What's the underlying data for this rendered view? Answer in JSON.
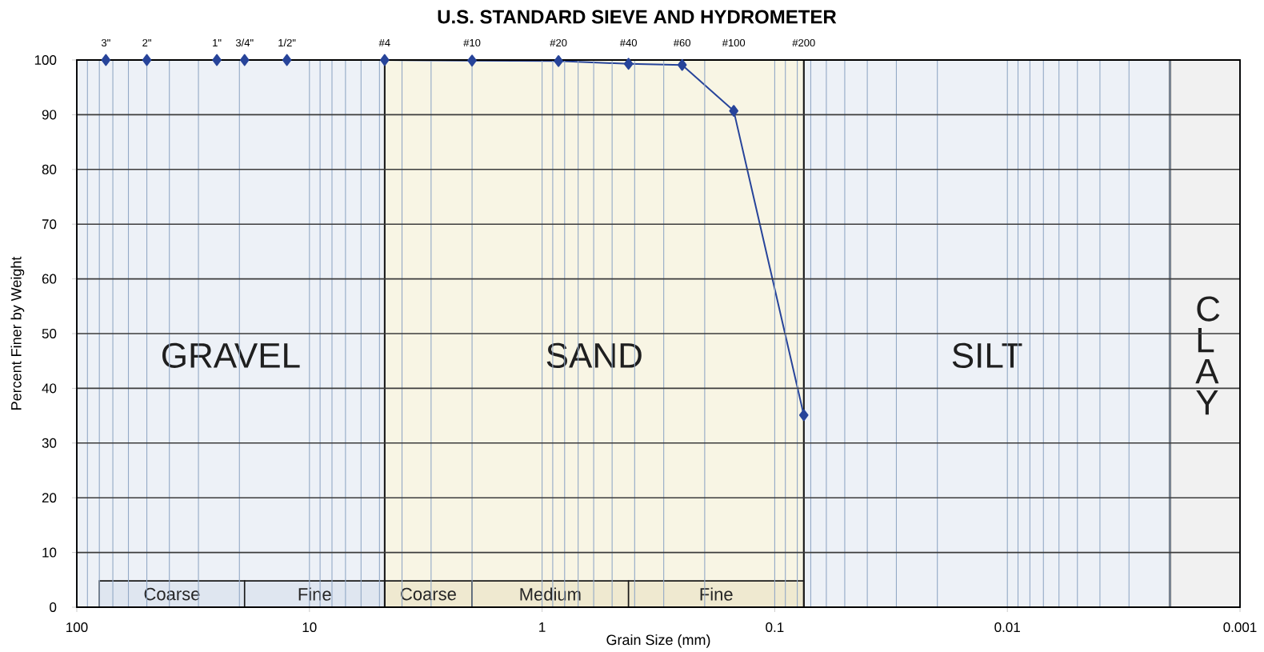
{
  "chart_data": {
    "type": "line",
    "title": "U.S. STANDARD SIEVE AND HYDROMETER",
    "xlabel": "Grain Size (mm)",
    "ylabel": "Percent Finer by Weight",
    "x": [
      75,
      50,
      25,
      19,
      12.5,
      4.75,
      2,
      0.85,
      0.425,
      0.25,
      0.15,
      0.075
    ],
    "series": [
      {
        "color": "#27449a",
        "values": [
          100,
          100,
          100,
          100,
          100,
          100,
          99.9,
          99.8,
          99.3,
          99.1,
          90.7,
          35.1
        ]
      }
    ],
    "xlim": [
      100,
      0.001
    ],
    "xticks": [
      100,
      10,
      1,
      0.1,
      0.01,
      0.001
    ],
    "ylim": [
      0,
      100
    ],
    "yticks": [
      0,
      10,
      20,
      30,
      40,
      50,
      60,
      70,
      80,
      90,
      100
    ],
    "annotations": [
      {
        "text": "3\"",
        "x": 75,
        "y": 100
      },
      {
        "text": "2\"",
        "x": 50,
        "y": 100
      },
      {
        "text": "1\"",
        "x": 25,
        "y": 100
      },
      {
        "text": "3/4\"",
        "x": 19,
        "y": 100
      },
      {
        "text": "1/2\"",
        "x": 12.5,
        "y": 100
      },
      {
        "text": "#4",
        "x": 4.75,
        "y": 100
      },
      {
        "text": "#10",
        "x": 2,
        "y": 100
      },
      {
        "text": "#20",
        "x": 0.85,
        "y": 100
      },
      {
        "text": "#40",
        "x": 0.425,
        "y": 100
      },
      {
        "text": "#60",
        "x": 0.25,
        "y": 100
      },
      {
        "text": "#100",
        "x": 0.15,
        "y": 100
      },
      {
        "text": "#200",
        "x": 0.075,
        "y": 100
      }
    ],
    "log": "x",
    "grid": true,
    "marker": "diamond",
    "bands": [
      {
        "axis": "x",
        "from": 100,
        "to": 4.75,
        "label": "GRAVEL",
        "color": "#edf1f7"
      },
      {
        "axis": "x",
        "from": 4.75,
        "to": 0.075,
        "label": "SAND",
        "color": "#f8f5e4"
      },
      {
        "axis": "x",
        "from": 0.075,
        "to": 0.002,
        "label": "SILT",
        "color": "#edf1f7"
      },
      {
        "axis": "x",
        "from": 0.002,
        "to": 0.001,
        "label": "C L A Y",
        "color": "#f1f1f1"
      },
      {
        "axis": "x",
        "from": 80,
        "to": 19,
        "label": "Coarse",
        "color": "#dfe6f0"
      },
      {
        "axis": "x",
        "from": 19,
        "to": 4.75,
        "label": "Fine",
        "color": "#dfe6f0"
      },
      {
        "axis": "x",
        "from": 4.75,
        "to": 2,
        "label": "Coarse",
        "color": "#efe9d0"
      },
      {
        "axis": "x",
        "from": 2,
        "to": 0.425,
        "label": "Medium",
        "color": "#efe9d0"
      },
      {
        "axis": "x",
        "from": 0.425,
        "to": 0.075,
        "label": "Fine",
        "color": "#efe9d0"
      }
    ]
  }
}
